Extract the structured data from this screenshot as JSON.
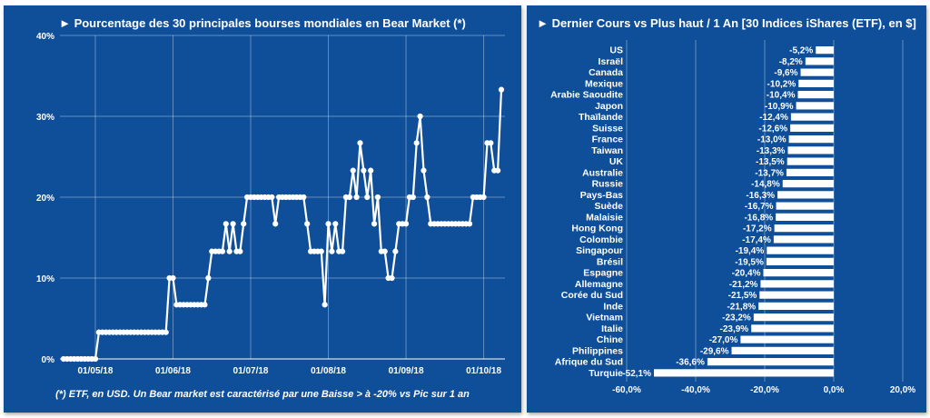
{
  "left_chart": {
    "title": "► Pourcentage des 30 principales bourses mondiales en Bear Market (*)",
    "footnote": "(*) ETF, en USD. Un Bear market est caractérisé par une Baisse > à -20% vs Pic sur 1 an"
  },
  "right_chart": {
    "title": "► Dernier Cours vs Plus haut / 1 An [30 Indices iShares (ETF), en $]"
  },
  "colors": {
    "background": "#0f4f9a",
    "line": "#ffffff",
    "bar": "#ffffff",
    "text": "#ffffff"
  },
  "chart_data": [
    {
      "type": "line",
      "title": "► Pourcentage des 30 principales bourses mondiales en Bear Market (*)",
      "y_ticks": [
        "0%",
        "10%",
        "20%",
        "30%",
        "40%"
      ],
      "ylim": [
        0,
        40
      ],
      "x_ticks": [
        {
          "label": "01/05/18",
          "index": 9
        },
        {
          "label": "01/06/18",
          "index": 31
        },
        {
          "label": "01/07/18",
          "index": 53
        },
        {
          "label": "01/08/18",
          "index": 75
        },
        {
          "label": "01/09/18",
          "index": 97
        },
        {
          "label": "01/10/18",
          "index": 119
        }
      ],
      "grid": true,
      "values": [
        0,
        0,
        0,
        0,
        0,
        0,
        0,
        0,
        0,
        0,
        3.3,
        3.3,
        3.3,
        3.3,
        3.3,
        3.3,
        3.3,
        3.3,
        3.3,
        3.3,
        3.3,
        3.3,
        3.3,
        3.3,
        3.3,
        3.3,
        3.3,
        3.3,
        3.3,
        3.3,
        10,
        10,
        6.7,
        6.7,
        6.7,
        6.7,
        6.7,
        6.7,
        6.7,
        6.7,
        6.7,
        10,
        13.3,
        13.3,
        13.3,
        13.3,
        16.7,
        13.3,
        16.7,
        13.3,
        13.3,
        16.7,
        20,
        20,
        20,
        20,
        20,
        20,
        20,
        20,
        16.7,
        20,
        20,
        20,
        20,
        20,
        20,
        20,
        20,
        16.7,
        13.3,
        13.3,
        13.3,
        13.3,
        6.7,
        16.7,
        13.3,
        16.7,
        13.3,
        13.3,
        20,
        20,
        23.3,
        20,
        26.7,
        23.3,
        20,
        23.3,
        16.7,
        20,
        13.3,
        13.3,
        10,
        10,
        13.3,
        16.7,
        16.7,
        16.7,
        20,
        20,
        26.7,
        30,
        23.3,
        20,
        16.7,
        16.7,
        16.7,
        16.7,
        16.7,
        16.7,
        16.7,
        16.7,
        16.7,
        16.7,
        16.7,
        16.7,
        20,
        20,
        20,
        20,
        26.7,
        26.7,
        23.3,
        23.3,
        33.3
      ]
    },
    {
      "type": "bar",
      "orientation": "horizontal",
      "title": "► Dernier Cours vs Plus haut / 1 An [30 Indices iShares (ETF), en $]",
      "categories": [
        "US",
        "Israël",
        "Canada",
        "Mexique",
        "Arabie Saoudite",
        "Japon",
        "Thaïlande",
        "Suisse",
        "France",
        "Taiwan",
        "UK",
        "Australie",
        "Russie",
        "Pays-Bas",
        "Suède",
        "Malaisie",
        "Hong Kong",
        "Colombie",
        "Singapour",
        "Brésil",
        "Espagne",
        "Allemagne",
        "Corée du Sud",
        "Inde",
        "Vietnam",
        "Italie",
        "Chine",
        "Philippines",
        "Afrique du Sud",
        "Turquie"
      ],
      "values": [
        -5.2,
        -8.2,
        -9.6,
        -10.2,
        -10.4,
        -10.9,
        -12.4,
        -12.6,
        -13.0,
        -13.3,
        -13.5,
        -13.7,
        -14.8,
        -16.3,
        -16.7,
        -16.8,
        -17.2,
        -17.4,
        -19.4,
        -19.5,
        -20.4,
        -21.2,
        -21.5,
        -21.8,
        -23.2,
        -23.9,
        -27.0,
        -29.6,
        -36.6,
        -52.1
      ],
      "value_labels": [
        "-5,2%",
        "-8,2%",
        "-9,6%",
        "-10,2%",
        "-10,4%",
        "-10,9%",
        "-12,4%",
        "-12,6%",
        "-13,0%",
        "-13,3%",
        "-13,5%",
        "-13,7%",
        "-14,8%",
        "-16,3%",
        "-16,7%",
        "-16,8%",
        "-17,2%",
        "-17,4%",
        "-19,4%",
        "-19,5%",
        "-20,4%",
        "-21,2%",
        "-21,5%",
        "-21,8%",
        "-23,2%",
        "-23,9%",
        "-27,0%",
        "-29,6%",
        "-36,6%",
        "-52,1%"
      ],
      "x_ticks": [
        {
          "label": "-60,0%",
          "value": -60
        },
        {
          "label": "-40,0%",
          "value": -40
        },
        {
          "label": "-20,0%",
          "value": -20
        },
        {
          "label": "0,0%",
          "value": 0
        },
        {
          "label": "20,0%",
          "value": 20
        }
      ],
      "xlim": [
        -60,
        20
      ],
      "grid": true
    }
  ]
}
